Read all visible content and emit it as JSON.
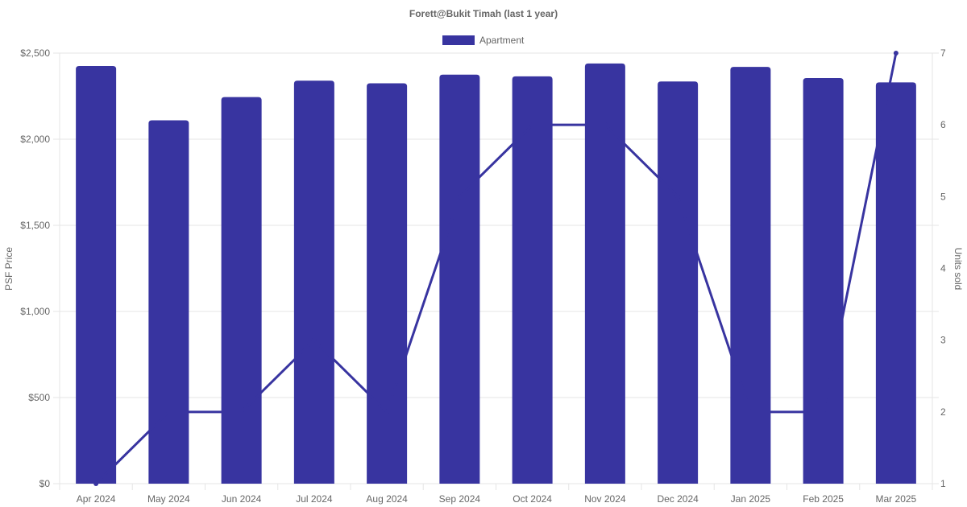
{
  "chart_data": {
    "type": "bar",
    "title": "Forett@Bukit Timah (last 1 year)",
    "categories": [
      "Apr 2024",
      "May 2024",
      "Jun 2024",
      "Jul 2024",
      "Aug 2024",
      "Sep 2024",
      "Oct 2024",
      "Nov 2024",
      "Dec 2024",
      "Jan 2025",
      "Feb 2025",
      "Mar 2025"
    ],
    "series": [
      {
        "name": "Apartment",
        "type": "bar",
        "axis": "left",
        "values": [
          2425,
          2110,
          2245,
          2340,
          2325,
          2375,
          2365,
          2440,
          2335,
          2420,
          2355,
          2330
        ]
      },
      {
        "type": "line",
        "axis": "right",
        "values": [
          1,
          2,
          2,
          3,
          2,
          5,
          6,
          6,
          5,
          2,
          2,
          7
        ]
      }
    ],
    "ylabel": "PSF Price",
    "y2label": "Units sold",
    "ylim": [
      0,
      2500
    ],
    "y2lim": [
      1,
      7
    ],
    "yticks": [
      "$0",
      "$500",
      "$1,000",
      "$1,500",
      "$2,000",
      "$2,500"
    ],
    "y2ticks": [
      "1",
      "2",
      "3",
      "4",
      "5",
      "6",
      "7"
    ],
    "grid": true,
    "legend_position": "top",
    "colors": {
      "bar": "#3834a0",
      "line": "#3834a0",
      "grid": "#e5e5e5",
      "text": "#666666"
    }
  }
}
